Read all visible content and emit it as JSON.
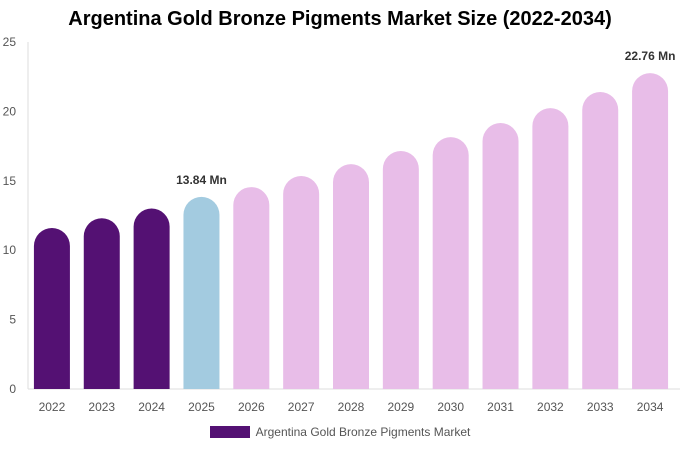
{
  "chart_data": {
    "type": "bar",
    "title": "Argentina Gold Bronze Pigments Market Size (2022-2034)",
    "categories": [
      "2022",
      "2023",
      "2024",
      "2025",
      "2026",
      "2027",
      "2028",
      "2029",
      "2030",
      "2031",
      "2032",
      "2033",
      "2034"
    ],
    "series": [
      {
        "name": "Argentina Gold Bronze Pigments Market",
        "values": [
          11.6,
          12.3,
          13.0,
          13.84,
          14.55,
          15.35,
          16.2,
          17.15,
          18.15,
          19.16,
          20.24,
          21.4,
          22.76
        ]
      }
    ],
    "ylim": [
      0,
      25
    ],
    "yticks": [
      0,
      5,
      10,
      15,
      20,
      25
    ],
    "data_labels": {
      "3": "13.84 Mn",
      "12": "22.76 Mn"
    },
    "colors": {
      "historical": "#541173",
      "current": "#a3cbe0",
      "forecast": "#e8bde8"
    },
    "grid": false,
    "legend_position": "bottom"
  }
}
